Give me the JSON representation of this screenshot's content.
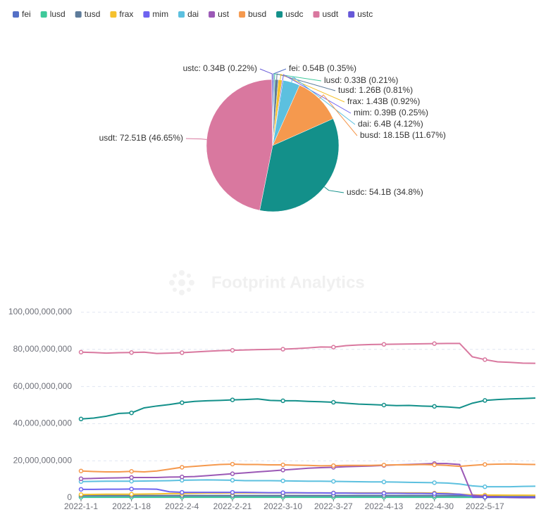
{
  "watermark": "Footprint Analytics",
  "chart_data": [
    {
      "type": "pie",
      "values": [
        0.54,
        0.33,
        1.26,
        1.43,
        0.39,
        6.4,
        18.15,
        54.1,
        72.51,
        0.34
      ],
      "value_labels": [
        "fei: 0.54B (0.35%)",
        "lusd: 0.33B (0.21%)",
        "tusd: 1.26B (0.81%)",
        "frax: 1.43B (0.92%)",
        "mim: 0.39B (0.25%)",
        "dai: 6.4B (4.12%)",
        "busd: 18.15B (11.67%)",
        "usdc: 54.1B (34.8%)",
        "usdt: 72.51B (46.65%)",
        "ustc: 0.34B (0.22%)"
      ],
      "colors": [
        "#5470c6",
        "#3ec99a",
        "#5d7b9a",
        "#f5c12e",
        "#6e63f0",
        "#5cc0df",
        "#f5994e",
        "#13908a",
        "#d9789f",
        "#6658d8"
      ]
    },
    {
      "type": "line",
      "categories": [
        "2022-1-1",
        null,
        null,
        null,
        "2022-1-18",
        null,
        null,
        null,
        "2022-2-4",
        null,
        null,
        null,
        "2022-2-21",
        null,
        null,
        null,
        "2022-3-10",
        null,
        null,
        null,
        "2022-3-27",
        null,
        null,
        null,
        "2022-4-13",
        null,
        null,
        null,
        "2022-4-30",
        null,
        null,
        null,
        "2022-5-17",
        null,
        null,
        null,
        null
      ],
      "ylim": [
        0,
        100000000000
      ],
      "yticks": [
        0,
        {
          "value": 20000000000,
          "label": "20,000,000,000"
        },
        {
          "value": 40000000000,
          "label": "40,000,000,000"
        },
        {
          "value": 60000000000,
          "label": "60,000,000,000"
        },
        {
          "value": 80000000000,
          "label": "80,000,000,000"
        },
        {
          "value": 100000000000,
          "label": "100,000,000,000"
        }
      ],
      "grid": true,
      "series": [
        {
          "name": "fei",
          "color": "#5470c6",
          "values": [
            500000000.0,
            500000000.0,
            500000000.0,
            500000000.0,
            500000000.0,
            500000000.0,
            500000000.0,
            500000000.0,
            500000000.0,
            500000000.0,
            500000000.0,
            500000000.0,
            500000000.0,
            500000000.0,
            500000000.0,
            500000000.0,
            500000000.0,
            500000000.0,
            500000000.0,
            500000000.0,
            500000000.0,
            500000000.0,
            500000000.0,
            500000000.0,
            500000000.0,
            500000000.0,
            500000000.0,
            500000000.0,
            500000000.0,
            500000000.0,
            500000000.0,
            500000000.0,
            500000000.0,
            540000000.0,
            540000000.0,
            540000000.0,
            540000000.0
          ]
        },
        {
          "name": "lusd",
          "color": "#3ec99a",
          "values": [
            400000000.0,
            400000000.0,
            400000000.0,
            400000000.0,
            400000000.0,
            400000000.0,
            400000000.0,
            400000000.0,
            400000000.0,
            400000000.0,
            400000000.0,
            400000000.0,
            400000000.0,
            400000000.0,
            400000000.0,
            400000000.0,
            400000000.0,
            400000000.0,
            400000000.0,
            400000000.0,
            400000000.0,
            400000000.0,
            400000000.0,
            400000000.0,
            400000000.0,
            400000000.0,
            400000000.0,
            400000000.0,
            400000000.0,
            400000000.0,
            350000000.0,
            330000000.0,
            330000000.0,
            330000000.0,
            330000000.0,
            330000000.0,
            330000000.0
          ]
        },
        {
          "name": "tusd",
          "color": "#5d7b9a",
          "values": [
            1300000000.0,
            1300000000.0,
            1300000000.0,
            1300000000.0,
            1300000000.0,
            1300000000.0,
            1300000000.0,
            1300000000.0,
            1300000000.0,
            1300000000.0,
            1300000000.0,
            1300000000.0,
            1300000000.0,
            1300000000.0,
            1300000000.0,
            1300000000.0,
            1300000000.0,
            1300000000.0,
            1300000000.0,
            1300000000.0,
            1300000000.0,
            1300000000.0,
            1300000000.0,
            1300000000.0,
            1300000000.0,
            1300000000.0,
            1300000000.0,
            1300000000.0,
            1300000000.0,
            1300000000.0,
            1300000000.0,
            1260000000.0,
            1260000000.0,
            1260000000.0,
            1260000000.0,
            1260000000.0,
            1260000000.0
          ]
        },
        {
          "name": "frax",
          "color": "#f5c12e",
          "values": [
            1800000000.0,
            1900000000.0,
            2000000000.0,
            2000000000.0,
            2000000000.0,
            2100000000.0,
            2200000000.0,
            2300000000.0,
            2400000000.0,
            2500000000.0,
            2600000000.0,
            2600000000.0,
            2700000000.0,
            2700000000.0,
            2700000000.0,
            2700000000.0,
            2700000000.0,
            2700000000.0,
            2700000000.0,
            2700000000.0,
            2700000000.0,
            2700000000.0,
            2700000000.0,
            2700000000.0,
            2700000000.0,
            2700000000.0,
            2700000000.0,
            2700000000.0,
            2600000000.0,
            2500000000.0,
            2000000000.0,
            1600000000.0,
            1500000000.0,
            1500000000.0,
            1450000000.0,
            1450000000.0,
            1430000000.0
          ]
        },
        {
          "name": "mim",
          "color": "#6e63f0",
          "values": [
            4600000000.0,
            4600000000.0,
            4700000000.0,
            4700000000.0,
            4800000000.0,
            4800000000.0,
            4700000000.0,
            3300000000.0,
            3000000000.0,
            3000000000.0,
            3000000000.0,
            3000000000.0,
            3000000000.0,
            3000000000.0,
            2900000000.0,
            2800000000.0,
            2800000000.0,
            2800000000.0,
            2700000000.0,
            2700000000.0,
            2600000000.0,
            2600000000.0,
            2500000000.0,
            2500000000.0,
            2500000000.0,
            2500000000.0,
            2400000000.0,
            2400000000.0,
            2300000000.0,
            2200000000.0,
            2000000000.0,
            1000000000.0,
            500000000.0,
            400000000.0,
            400000000.0,
            400000000.0,
            390000000.0
          ]
        },
        {
          "name": "dai",
          "color": "#5cc0df",
          "values": [
            8800000000.0,
            8900000000.0,
            9000000000.0,
            9000000000.0,
            9000000000.0,
            9100000000.0,
            9200000000.0,
            9300000000.0,
            9500000000.0,
            9600000000.0,
            9700000000.0,
            9600000000.0,
            9500000000.0,
            9300000000.0,
            9300000000.0,
            9300000000.0,
            9200000000.0,
            9100000000.0,
            9000000000.0,
            9000000000.0,
            8900000000.0,
            8800000000.0,
            8700000000.0,
            8600000000.0,
            8600000000.0,
            8500000000.0,
            8400000000.0,
            8300000000.0,
            8200000000.0,
            8000000000.0,
            7500000000.0,
            6500000000.0,
            6000000000.0,
            6000000000.0,
            6000000000.0,
            6200000000.0,
            6300000000.0
          ]
        },
        {
          "name": "ust",
          "color": "#9b59b6",
          "values": [
            10300000000.0,
            10500000000.0,
            10700000000.0,
            10800000000.0,
            11000000000.0,
            11000000000.0,
            11000000000.0,
            11200000000.0,
            11300000000.0,
            11500000000.0,
            12000000000.0,
            12500000000.0,
            13000000000.0,
            13500000000.0,
            14000000000.0,
            14500000000.0,
            15000000000.0,
            15500000000.0,
            16000000000.0,
            16300000000.0,
            16500000000.0,
            16800000000.0,
            17000000000.0,
            17200000000.0,
            17500000000.0,
            17800000000.0,
            18000000000.0,
            18300000000.0,
            18500000000.0,
            18500000000.0,
            18000000000.0,
            1500000000.0,
            800000000.0,
            500000000.0,
            200000000.0,
            100000000.0,
            100000000.0
          ]
        },
        {
          "name": "busd",
          "color": "#f5994e",
          "values": [
            14500000000.0,
            14200000000.0,
            14000000000.0,
            14000000000.0,
            14300000000.0,
            14000000000.0,
            14500000000.0,
            15500000000.0,
            16500000000.0,
            17000000000.0,
            17500000000.0,
            18000000000.0,
            18200000000.0,
            18000000000.0,
            18000000000.0,
            17800000000.0,
            17800000000.0,
            17600000000.0,
            17500000000.0,
            17300000000.0,
            17400000000.0,
            17500000000.0,
            17500000000.0,
            17500000000.0,
            17700000000.0,
            17800000000.0,
            17800000000.0,
            18000000000.0,
            17800000000.0,
            17500000000.0,
            17000000000.0,
            17500000000.0,
            18000000000.0,
            18200000000.0,
            18300000000.0,
            18100000000.0,
            18000000000.0
          ]
        },
        {
          "name": "usdc",
          "color": "#13908a",
          "values": [
            42500000000.0,
            43000000000.0,
            44000000000.0,
            45500000000.0,
            45800000000.0,
            48500000000.0,
            49500000000.0,
            50300000000.0,
            51300000000.0,
            52000000000.0,
            52300000000.0,
            52500000000.0,
            52800000000.0,
            53000000000.0,
            53300000000.0,
            52500000000.0,
            52300000000.0,
            52300000000.0,
            52000000000.0,
            51800000000.0,
            51500000000.0,
            51000000000.0,
            50500000000.0,
            50300000000.0,
            50000000000.0,
            49700000000.0,
            49800000000.0,
            49500000000.0,
            49300000000.0,
            49000000000.0,
            48500000000.0,
            51000000000.0,
            52500000000.0,
            53000000000.0,
            53300000000.0,
            53500000000.0,
            53800000000.0
          ]
        },
        {
          "name": "usdt",
          "color": "#d9789f",
          "values": [
            78500000000.0,
            78300000000.0,
            78000000000.0,
            78200000000.0,
            78300000000.0,
            78500000000.0,
            77800000000.0,
            78000000000.0,
            78200000000.0,
            78600000000.0,
            79000000000.0,
            79300000000.0,
            79500000000.0,
            79700000000.0,
            79900000000.0,
            80000000000.0,
            80100000000.0,
            80400000000.0,
            80800000000.0,
            81300000000.0,
            81200000000.0,
            82000000000.0,
            82400000000.0,
            82600000000.0,
            82700000000.0,
            82800000000.0,
            82900000000.0,
            83000000000.0,
            83100000000.0,
            83200000000.0,
            83200000000.0,
            76000000000.0,
            74500000000.0,
            73300000000.0,
            73000000000.0,
            72600000000.0,
            72500000000.0
          ]
        },
        {
          "name": "ustc",
          "color": "#6658d8",
          "values": [
            null,
            null,
            null,
            null,
            null,
            null,
            null,
            null,
            null,
            null,
            null,
            null,
            null,
            null,
            null,
            null,
            null,
            null,
            null,
            null,
            null,
            null,
            null,
            null,
            null,
            null,
            null,
            null,
            null,
            null,
            null,
            340000000.0,
            340000000.0,
            340000000.0,
            340000000.0,
            340000000.0,
            340000000.0
          ]
        }
      ]
    }
  ]
}
